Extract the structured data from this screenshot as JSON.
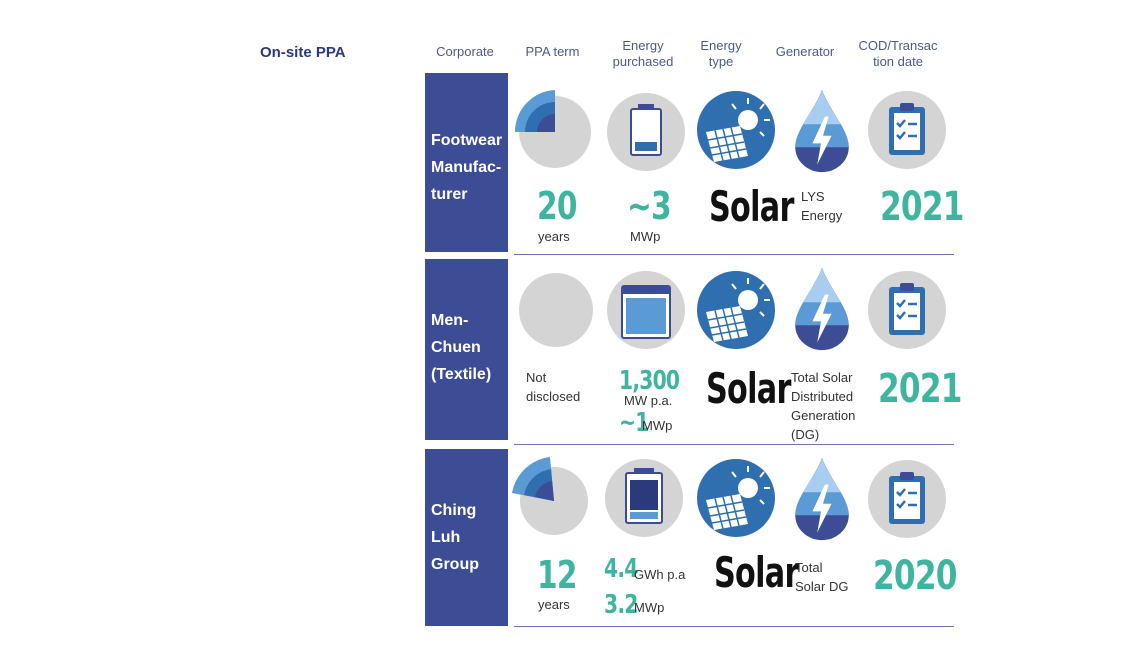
{
  "section_title": "On-site PPA",
  "headers": {
    "corporate": "Corporate",
    "ppa_term": "PPA term",
    "energy_purchased_1": "Energy",
    "energy_purchased_2": "purchased",
    "energy_type_1": "Energy",
    "energy_type_2": "type",
    "generator": "Generator",
    "cod_1": "COD/Transac",
    "cod_2": "tion date"
  },
  "rows": [
    {
      "corporate": [
        "Footwear",
        "Manufac-",
        "turer"
      ],
      "term_value": "20",
      "term_unit": "years",
      "term_fraction": 0.25,
      "energy_value": "~3",
      "energy_unit": "MWp",
      "energy_type": "Solar",
      "generator": [
        "LYS",
        "Energy"
      ],
      "date": "2021"
    },
    {
      "corporate": [
        "Men-",
        "Chuen",
        "(Textile)"
      ],
      "term_text": [
        "Not",
        "disclosed"
      ],
      "term_fraction": 0,
      "energy_value_1": "1,300",
      "energy_unit_1": "MW p.a.",
      "energy_value_2": "~1",
      "energy_unit_2": "MWp",
      "energy_type": "Solar",
      "generator": [
        "Total Solar",
        "Distributed",
        "Generation",
        "(DG)"
      ],
      "date": "2021"
    },
    {
      "corporate": [
        "Ching",
        "Luh",
        "Group"
      ],
      "term_value": "12",
      "term_unit": "years",
      "term_fraction": 0.2,
      "energy_value_1": "4.4",
      "energy_unit_1": "GWh p.a",
      "energy_value_2": "3.2",
      "energy_unit_2": "MWp",
      "energy_type": "Solar",
      "generator": [
        "Total",
        "Solar DG"
      ],
      "date": "2020"
    }
  ],
  "colors": {
    "navy": "#3c4d96",
    "teal": "#3fb5a0",
    "blue": "#2f6fb0",
    "light_blue": "#5b9bd5",
    "grey": "#d4d4d4"
  },
  "icons": [
    "quarter-pie-icon",
    "battery-icon",
    "solar-panel-icon",
    "water-drop-bolt-icon",
    "clipboard-check-icon"
  ]
}
